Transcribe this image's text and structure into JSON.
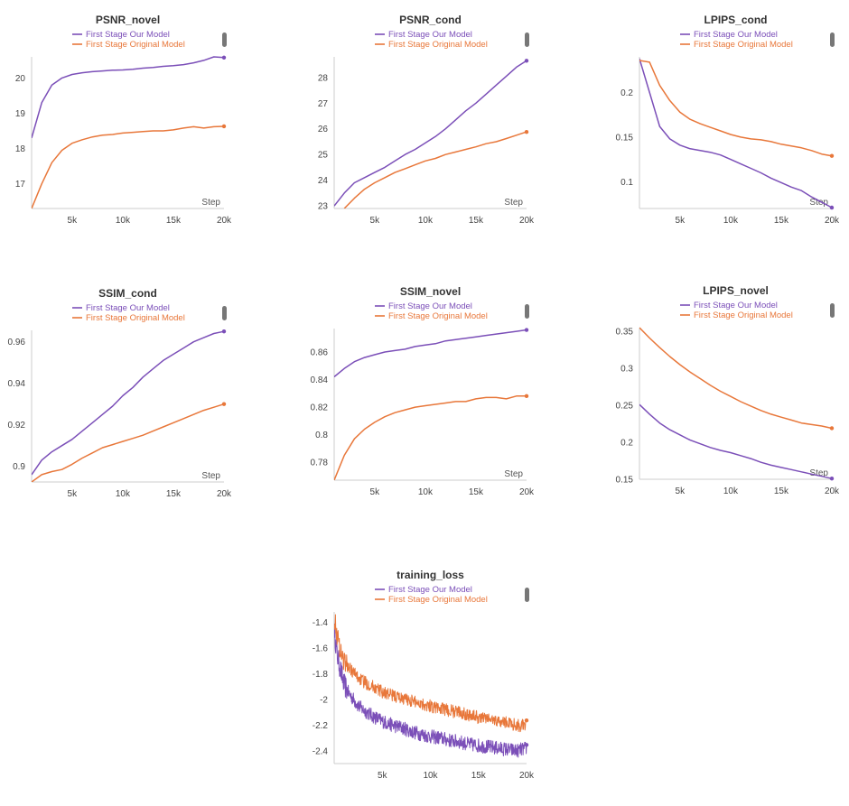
{
  "legend_colors": {
    "ours": "#7b4fb8",
    "orig": "#e8773a"
  },
  "chart_data": [
    {
      "type": "line",
      "title": "PSNR_novel",
      "xlabel": "Step",
      "ylabel": "",
      "xlim": [
        1,
        20
      ],
      "ylim": [
        16.3,
        20.6
      ],
      "xticks": [
        5,
        10,
        15,
        20
      ],
      "xtick_labels": [
        "5k",
        "10k",
        "15k",
        "20k"
      ],
      "yticks": [
        17,
        18,
        19,
        20
      ],
      "ytick_labels": [
        "17",
        "18",
        "19",
        "20"
      ],
      "series": [
        {
          "name": "First Stage Our Model",
          "color": "#7b4fb8",
          "x": [
            1,
            2,
            3,
            4,
            5,
            6,
            7,
            8,
            9,
            10,
            11,
            12,
            13,
            14,
            15,
            16,
            17,
            18,
            19,
            20
          ],
          "y": [
            18.3,
            19.3,
            19.8,
            20.0,
            20.1,
            20.15,
            20.18,
            20.2,
            20.22,
            20.23,
            20.25,
            20.28,
            20.3,
            20.33,
            20.35,
            20.38,
            20.43,
            20.5,
            20.6,
            20.58
          ]
        },
        {
          "name": "First Stage Original Model",
          "color": "#e8773a",
          "x": [
            1,
            2,
            3,
            4,
            5,
            6,
            7,
            8,
            9,
            10,
            11,
            12,
            13,
            14,
            15,
            16,
            17,
            18,
            19,
            20
          ],
          "y": [
            16.3,
            17.0,
            17.6,
            17.95,
            18.15,
            18.25,
            18.33,
            18.38,
            18.4,
            18.44,
            18.46,
            18.48,
            18.5,
            18.5,
            18.53,
            18.58,
            18.62,
            18.58,
            18.62,
            18.63
          ]
        }
      ]
    },
    {
      "type": "line",
      "title": "PSNR_cond",
      "xlabel": "Step",
      "ylabel": "",
      "xlim": [
        1,
        20
      ],
      "ylim": [
        22.9,
        28.8
      ],
      "xticks": [
        5,
        10,
        15,
        20
      ],
      "xtick_labels": [
        "5k",
        "10k",
        "15k",
        "20k"
      ],
      "yticks": [
        23,
        24,
        25,
        26,
        27,
        28
      ],
      "ytick_labels": [
        "23",
        "24",
        "25",
        "26",
        "27",
        "28"
      ],
      "series": [
        {
          "name": "First Stage Our Model",
          "color": "#7b4fb8",
          "x": [
            1,
            2,
            3,
            4,
            5,
            6,
            7,
            8,
            9,
            10,
            11,
            12,
            13,
            14,
            15,
            16,
            17,
            18,
            19,
            20
          ],
          "y": [
            23.0,
            23.5,
            23.9,
            24.1,
            24.3,
            24.5,
            24.75,
            25.0,
            25.2,
            25.45,
            25.7,
            26.0,
            26.35,
            26.7,
            27.0,
            27.35,
            27.7,
            28.05,
            28.4,
            28.65
          ]
        },
        {
          "name": "First Stage Original Model",
          "color": "#e8773a",
          "x": [
            2,
            3,
            4,
            5,
            6,
            7,
            8,
            9,
            10,
            11,
            12,
            13,
            14,
            15,
            16,
            17,
            18,
            19,
            20
          ],
          "y": [
            22.9,
            23.3,
            23.65,
            23.9,
            24.1,
            24.3,
            24.45,
            24.6,
            24.75,
            24.85,
            25.0,
            25.1,
            25.2,
            25.3,
            25.42,
            25.5,
            25.62,
            25.75,
            25.88
          ]
        }
      ]
    },
    {
      "type": "line",
      "title": "LPIPS_cond",
      "xlabel": "Step",
      "ylabel": "",
      "xlim": [
        1,
        20
      ],
      "ylim": [
        0.07,
        0.24
      ],
      "xticks": [
        5,
        10,
        15,
        20
      ],
      "xtick_labels": [
        "5k",
        "10k",
        "15k",
        "20k"
      ],
      "yticks": [
        0.1,
        0.15,
        0.2
      ],
      "ytick_labels": [
        "0.1",
        "0.15",
        "0.2"
      ],
      "series": [
        {
          "name": "First Stage Our Model",
          "color": "#7b4fb8",
          "x": [
            1,
            2,
            3,
            4,
            5,
            6,
            7,
            8,
            9,
            10,
            11,
            12,
            13,
            14,
            15,
            16,
            17,
            18,
            19,
            20
          ],
          "y": [
            0.238,
            0.2,
            0.162,
            0.148,
            0.141,
            0.137,
            0.135,
            0.133,
            0.13,
            0.125,
            0.12,
            0.115,
            0.11,
            0.104,
            0.099,
            0.094,
            0.09,
            0.083,
            0.077,
            0.071
          ]
        },
        {
          "name": "First Stage Original Model",
          "color": "#e8773a",
          "x": [
            1,
            2,
            3,
            4,
            5,
            6,
            7,
            8,
            9,
            10,
            11,
            12,
            13,
            14,
            15,
            16,
            17,
            18,
            19,
            20
          ],
          "y": [
            0.236,
            0.234,
            0.208,
            0.191,
            0.178,
            0.17,
            0.165,
            0.161,
            0.157,
            0.153,
            0.15,
            0.148,
            0.147,
            0.145,
            0.142,
            0.14,
            0.138,
            0.135,
            0.131,
            0.129
          ]
        }
      ]
    },
    {
      "type": "line",
      "title": "SSIM_cond",
      "xlabel": "Step",
      "ylabel": "",
      "xlim": [
        1,
        20
      ],
      "ylim": [
        0.8925,
        0.9655
      ],
      "xticks": [
        5,
        10,
        15,
        20
      ],
      "xtick_labels": [
        "5k",
        "10k",
        "15k",
        "20k"
      ],
      "yticks": [
        0.9,
        0.92,
        0.94,
        0.96
      ],
      "ytick_labels": [
        "0.9",
        "0.92",
        "0.94",
        "0.96"
      ],
      "series": [
        {
          "name": "First Stage Our Model",
          "color": "#7b4fb8",
          "x": [
            1,
            2,
            3,
            4,
            5,
            6,
            7,
            8,
            9,
            10,
            11,
            12,
            13,
            14,
            15,
            16,
            17,
            18,
            19,
            20
          ],
          "y": [
            0.896,
            0.903,
            0.907,
            0.91,
            0.913,
            0.917,
            0.921,
            0.925,
            0.929,
            0.934,
            0.938,
            0.943,
            0.947,
            0.951,
            0.954,
            0.957,
            0.96,
            0.962,
            0.964,
            0.965
          ]
        },
        {
          "name": "First Stage Original Model",
          "color": "#e8773a",
          "x": [
            1,
            2,
            3,
            4,
            5,
            6,
            7,
            8,
            9,
            10,
            11,
            12,
            13,
            14,
            15,
            16,
            17,
            18,
            19,
            20
          ],
          "y": [
            0.8925,
            0.896,
            0.8975,
            0.8985,
            0.901,
            0.904,
            0.9065,
            0.909,
            0.9105,
            0.912,
            0.9135,
            0.915,
            0.917,
            0.919,
            0.921,
            0.923,
            0.925,
            0.927,
            0.9285,
            0.93
          ]
        }
      ]
    },
    {
      "type": "line",
      "title": "SSIM_novel",
      "xlabel": "Step",
      "ylabel": "",
      "xlim": [
        1,
        20
      ],
      "ylim": [
        0.767,
        0.877
      ],
      "xticks": [
        5,
        10,
        15,
        20
      ],
      "xtick_labels": [
        "5k",
        "10k",
        "15k",
        "20k"
      ],
      "yticks": [
        0.78,
        0.8,
        0.82,
        0.84,
        0.86
      ],
      "ytick_labels": [
        "0.78",
        "0.8",
        "0.82",
        "0.84",
        "0.86"
      ],
      "series": [
        {
          "name": "First Stage Our Model",
          "color": "#7b4fb8",
          "x": [
            1,
            2,
            3,
            4,
            5,
            6,
            7,
            8,
            9,
            10,
            11,
            12,
            13,
            14,
            15,
            16,
            17,
            18,
            19,
            20
          ],
          "y": [
            0.842,
            0.848,
            0.853,
            0.856,
            0.858,
            0.86,
            0.861,
            0.862,
            0.864,
            0.865,
            0.866,
            0.868,
            0.869,
            0.87,
            0.871,
            0.872,
            0.873,
            0.874,
            0.875,
            0.876
          ]
        },
        {
          "name": "First Stage Original Model",
          "color": "#e8773a",
          "x": [
            1,
            2,
            3,
            4,
            5,
            6,
            7,
            8,
            9,
            10,
            11,
            12,
            13,
            14,
            15,
            16,
            17,
            18,
            19,
            20
          ],
          "y": [
            0.767,
            0.785,
            0.797,
            0.804,
            0.809,
            0.813,
            0.816,
            0.818,
            0.82,
            0.821,
            0.822,
            0.823,
            0.824,
            0.824,
            0.826,
            0.827,
            0.827,
            0.826,
            0.828,
            0.828
          ]
        }
      ]
    },
    {
      "type": "line",
      "title": "LPIPS_novel",
      "xlabel": "Step",
      "ylabel": "",
      "xlim": [
        1,
        20
      ],
      "ylim": [
        0.15,
        0.355
      ],
      "xticks": [
        5,
        10,
        15,
        20
      ],
      "xtick_labels": [
        "5k",
        "10k",
        "15k",
        "20k"
      ],
      "yticks": [
        0.15,
        0.2,
        0.25,
        0.3,
        0.35
      ],
      "ytick_labels": [
        "0.15",
        "0.2",
        "0.25",
        "0.3",
        "0.35"
      ],
      "series": [
        {
          "name": "First Stage Our Model",
          "color": "#7b4fb8",
          "x": [
            1,
            2,
            3,
            4,
            5,
            6,
            7,
            8,
            9,
            10,
            11,
            12,
            13,
            14,
            15,
            16,
            17,
            18,
            19,
            20
          ],
          "y": [
            0.251,
            0.238,
            0.226,
            0.217,
            0.21,
            0.203,
            0.198,
            0.193,
            0.189,
            0.186,
            0.182,
            0.178,
            0.173,
            0.169,
            0.166,
            0.163,
            0.16,
            0.157,
            0.154,
            0.151
          ]
        },
        {
          "name": "First Stage Original Model",
          "color": "#e8773a",
          "x": [
            1,
            2,
            3,
            4,
            5,
            6,
            7,
            8,
            9,
            10,
            11,
            12,
            13,
            14,
            15,
            16,
            17,
            18,
            19,
            20
          ],
          "y": [
            0.355,
            0.341,
            0.328,
            0.316,
            0.305,
            0.295,
            0.286,
            0.277,
            0.269,
            0.262,
            0.255,
            0.249,
            0.243,
            0.238,
            0.234,
            0.23,
            0.226,
            0.224,
            0.222,
            0.219
          ]
        }
      ]
    },
    {
      "type": "line",
      "title": "training_loss",
      "xlabel": "",
      "ylabel": "",
      "xlim": [
        0,
        20
      ],
      "ylim": [
        -2.5,
        -1.32
      ],
      "xticks": [
        5,
        10,
        15,
        20
      ],
      "xtick_labels": [
        "5k",
        "10k",
        "15k",
        "20k"
      ],
      "yticks": [
        -1.4,
        -1.6,
        -1.8,
        -2,
        -2.2,
        -2.4
      ],
      "ytick_labels": [
        "-1.4",
        "-1.6",
        "-1.8",
        "-2",
        "-2.2",
        "-2.4"
      ],
      "series": [
        {
          "name": "First Stage Our Model",
          "color": "#7b4fb8",
          "x": [
            0,
            0.3,
            0.6,
            1,
            1.5,
            2,
            2.5,
            3,
            4,
            5,
            6,
            7,
            8,
            9,
            10,
            11,
            12,
            13,
            14,
            15,
            16,
            17,
            18,
            19,
            20
          ],
          "y": [
            -1.45,
            -1.65,
            -1.75,
            -1.88,
            -1.95,
            -2.0,
            -2.05,
            -2.08,
            -2.13,
            -2.17,
            -2.2,
            -2.22,
            -2.25,
            -2.27,
            -2.29,
            -2.3,
            -2.32,
            -2.33,
            -2.35,
            -2.36,
            -2.37,
            -2.38,
            -2.39,
            -2.4,
            -2.38
          ],
          "noise": 0.055
        },
        {
          "name": "First Stage Original Model",
          "color": "#e8773a",
          "x": [
            0,
            0.3,
            0.6,
            1,
            1.5,
            2,
            2.5,
            3,
            4,
            5,
            6,
            7,
            8,
            9,
            10,
            11,
            12,
            13,
            14,
            15,
            16,
            17,
            18,
            19,
            20
          ],
          "y": [
            -1.35,
            -1.5,
            -1.6,
            -1.7,
            -1.75,
            -1.79,
            -1.83,
            -1.86,
            -1.9,
            -1.94,
            -1.97,
            -1.99,
            -2.01,
            -2.03,
            -2.05,
            -2.07,
            -2.09,
            -2.1,
            -2.12,
            -2.14,
            -2.15,
            -2.17,
            -2.18,
            -2.2,
            -2.21
          ],
          "noise": 0.05
        }
      ]
    }
  ]
}
